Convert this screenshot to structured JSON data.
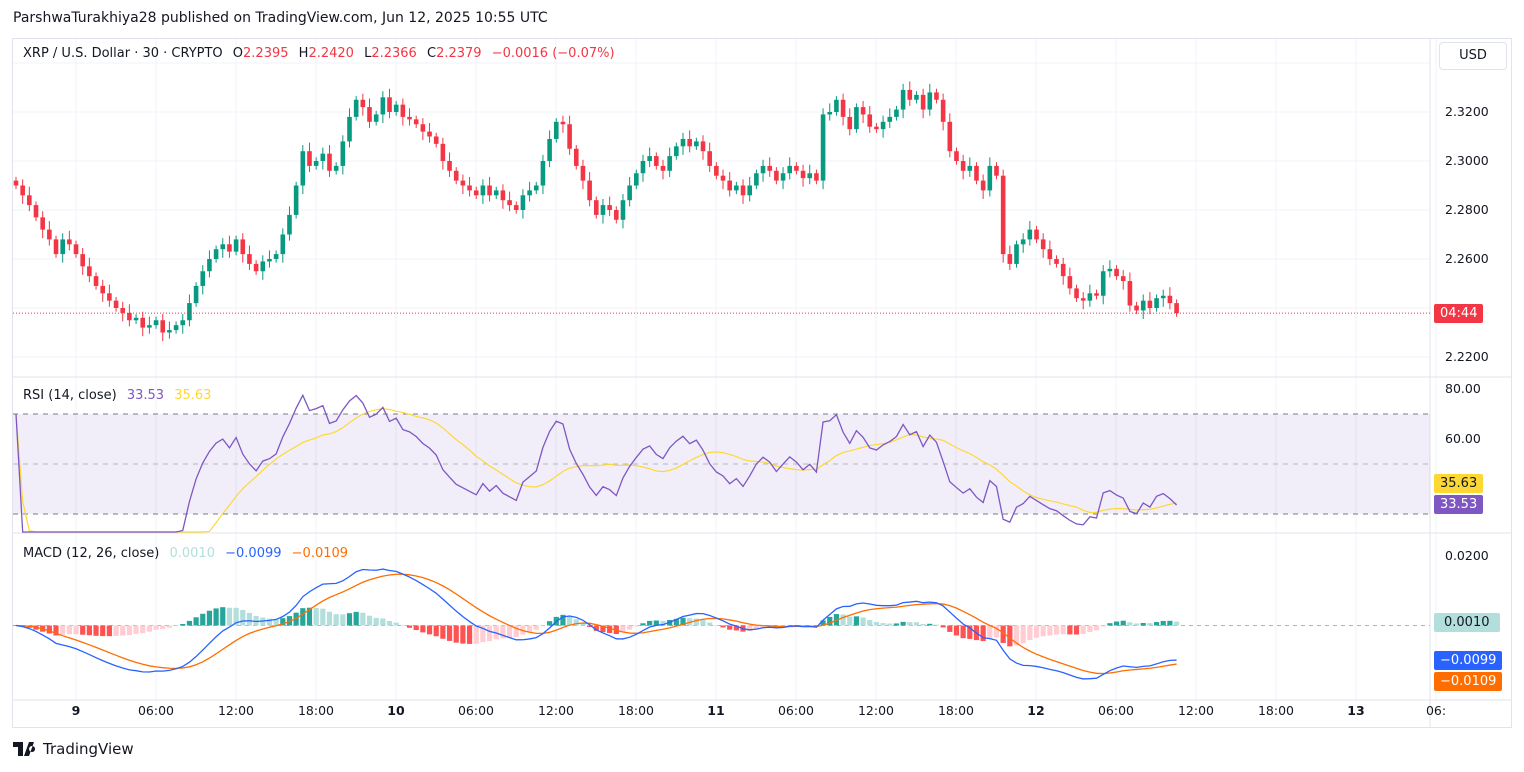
{
  "header": {
    "published": "ParshwaTurakhiya28 published on TradingView.com, Jun 12, 2025 10:55 UTC"
  },
  "legend": {
    "symbol": "XRP / U.S. Dollar · 30 · CRYPTO",
    "o_label": "O",
    "o": "2.2395",
    "h_label": "H",
    "h": "2.2420",
    "l_label": "L",
    "l": "2.2366",
    "c_label": "C",
    "c": "2.2379",
    "change": "−0.0016 (−0.07%)"
  },
  "currency_button": "USD",
  "countdown": "04:44",
  "rsi": {
    "title": "RSI (14, close)",
    "value": "33.53",
    "ma_value": "35.63"
  },
  "macd": {
    "title": "MACD (12, 26, close)",
    "hist": "0.0010",
    "macd": "−0.0099",
    "signal": "−0.0109"
  },
  "footer": {
    "brand": "TradingView"
  },
  "colors": {
    "up": "#089981",
    "down": "#f23645",
    "rsi": "#7e57c2",
    "rsi_ma": "#fdd835",
    "macd": "#2962ff",
    "signal": "#ff6d00",
    "hist_up_strong": "#26a69a",
    "hist_up_weak": "#b2dfdb",
    "hist_down_strong": "#ff5252",
    "hist_down_weak": "#ffcdd2"
  },
  "chart_data": {
    "type": "candlestick",
    "interval": "30",
    "first_bar": "Jun 8 19:30",
    "last_bar": "Jun 12 10:30",
    "price_ticks": [
      "2.3200",
      "2.3000",
      "2.2800",
      "2.2600",
      "2.2200"
    ],
    "rsi_ticks": [
      "80.00",
      "60.00"
    ],
    "rsi_bands": [
      70,
      50,
      30
    ],
    "macd_ticks": [
      "0.0200"
    ],
    "time_ticks": [
      "9",
      "06:00",
      "12:00",
      "18:00",
      "10",
      "06:00",
      "12:00",
      "18:00",
      "11",
      "06:00",
      "12:00",
      "18:00",
      "12",
      "06:00",
      "12:00",
      "18:00",
      "13",
      "06:"
    ],
    "first_open": 2.292,
    "closes": [
      2.29,
      2.286,
      2.282,
      2.277,
      2.272,
      2.268,
      2.262,
      2.268,
      2.266,
      2.262,
      2.257,
      2.253,
      2.249,
      2.246,
      2.243,
      2.24,
      2.238,
      2.235,
      2.236,
      2.232,
      2.233,
      2.235,
      2.23,
      2.231,
      2.233,
      2.235,
      2.242,
      2.249,
      2.255,
      2.26,
      2.264,
      2.266,
      2.263,
      2.268,
      2.262,
      2.258,
      2.255,
      2.259,
      2.26,
      2.262,
      2.27,
      2.278,
      2.29,
      2.304,
      2.298,
      2.3,
      2.303,
      2.296,
      2.298,
      2.308,
      2.318,
      2.325,
      2.322,
      2.316,
      2.319,
      2.326,
      2.32,
      2.323,
      2.318,
      2.317,
      2.315,
      2.312,
      2.31,
      2.307,
      2.3,
      2.296,
      2.292,
      2.29,
      2.288,
      2.286,
      2.29,
      2.286,
      2.288,
      2.284,
      2.282,
      2.28,
      2.286,
      2.288,
      2.29,
      2.3,
      2.309,
      2.316,
      2.315,
      2.305,
      2.298,
      2.292,
      2.284,
      2.278,
      2.282,
      2.28,
      2.276,
      2.284,
      2.29,
      2.295,
      2.3,
      2.302,
      2.298,
      2.296,
      2.302,
      2.306,
      2.309,
      2.306,
      2.308,
      2.304,
      2.298,
      2.294,
      2.292,
      2.288,
      2.29,
      2.286,
      2.29,
      2.295,
      2.298,
      2.296,
      2.292,
      2.295,
      2.298,
      2.296,
      2.293,
      2.295,
      2.292,
      2.319,
      2.32,
      2.325,
      2.318,
      2.313,
      2.322,
      2.319,
      2.314,
      2.313,
      2.316,
      2.318,
      2.321,
      2.329,
      2.325,
      2.327,
      2.321,
      2.328,
      2.325,
      2.316,
      2.304,
      2.3,
      2.296,
      2.298,
      2.292,
      2.288,
      2.298,
      2.294,
      2.262,
      2.258,
      2.266,
      2.268,
      2.272,
      2.268,
      2.264,
      2.26,
      2.258,
      2.253,
      2.248,
      2.244,
      2.243,
      2.246,
      2.245,
      2.255,
      2.256,
      2.253,
      2.251,
      2.241,
      2.239,
      2.243,
      2.24,
      2.244,
      2.245,
      2.242,
      2.2379
    ]
  }
}
